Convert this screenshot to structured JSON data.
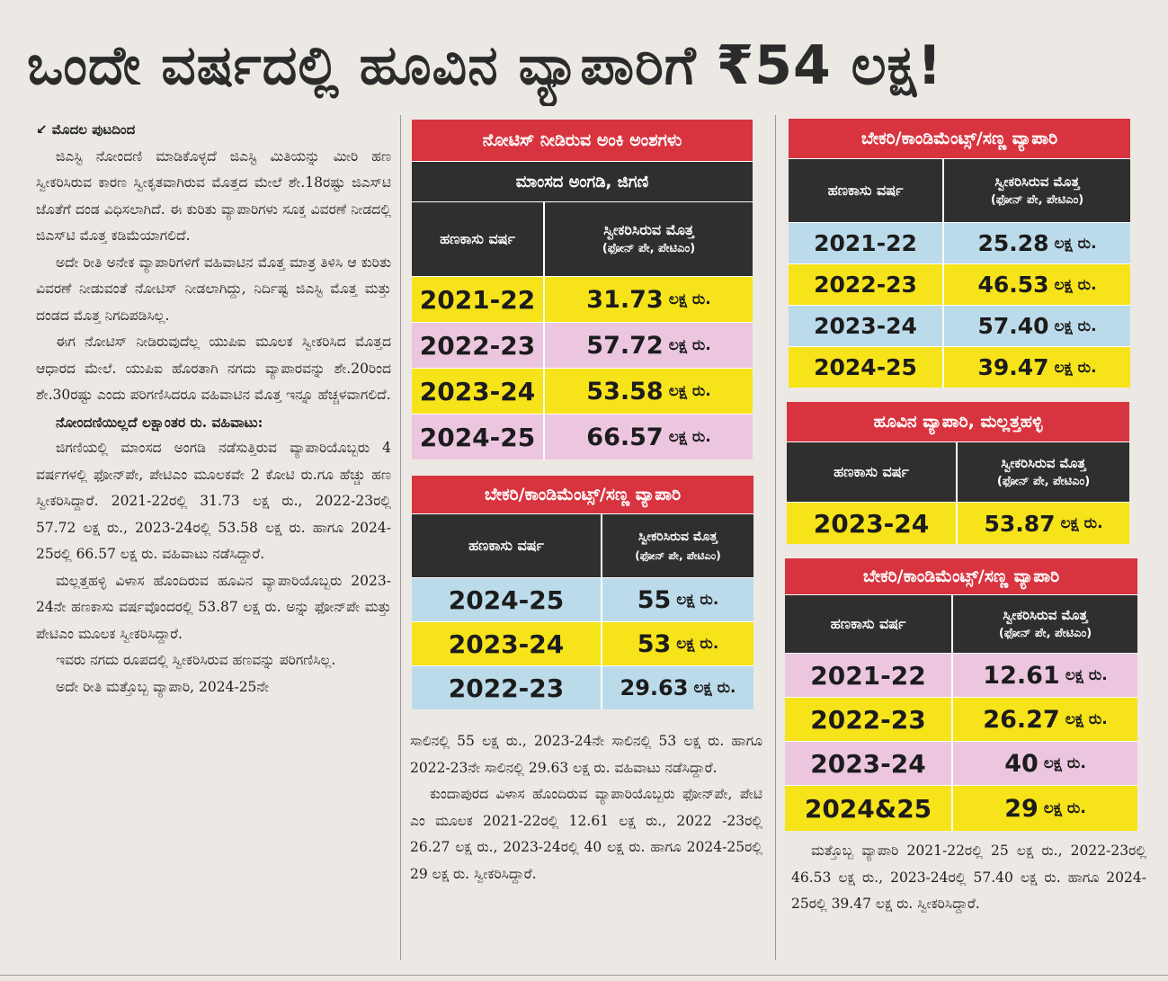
{
  "headline": "ಒಂದೇ ವರ್ಷದಲ್ಲಿ ಹೂವಿನ ವ್ಯಾಪಾರಿಗೆ ₹54 ಲಕ್ಷ!",
  "left_column": {
    "continued": "ಮೊದಲ ಪುಟದಿಂದ",
    "p1": "ಜಿಎಸ್ಟಿ ನೋಂದಣಿ ಮಾಡಿಕೊಳ್ಳದೆ ಜಿಎಸ್ಟಿ ಮಿತಿಯನ್ನು ಮೀರಿ ಹಣ ಸ್ವೀಕರಿಸಿರುವ ಕಾರಣ ಸ್ವೀಕೃತವಾಗಿರುವ ಮೊತ್ತದ ಮೇಲೆ ಶೇ.18ರಷ್ಟು ಜಿಎಸ್‌ಟಿ ಜೊತೆಗೆ ದಂಡ ವಿಧಿಸಲಾಗಿದೆ. ಈ ಕುರಿತು ವ್ಯಾಪಾರಿಗಳು ಸೂಕ್ತ ವಿವರಣೆ ನೀಡದಲ್ಲಿ ಜಿಎಸ್‌ಟಿ ಮೊತ್ತ ಕಡಿಮೆಯಾಗಲಿದೆ.",
    "p2": "ಅದೇ ರೀತಿ ಅನೇಕ ವ್ಯಾಪಾರಿಗಳಿಗೆ ವಹಿವಾಟಿನ ಮೊತ್ತ ಮಾತ್ರ ತಿಳಿಸಿ ಆ ಕುರಿತು ವಿವರಣೆ ನೀಡುವಂತೆ ನೋಟಿಸ್ ನೀಡಲಾಗಿದ್ದು, ನಿರ್ದಿಷ್ಟ ಜಿಎಸ್ಟಿ ಮೊತ್ತ ಮತ್ತು ದಂಡದ ಮೊತ್ತ ನಿಗದಿಪಡಿಸಿಲ್ಲ.",
    "p3": "ಈಗ ನೋಟಿಸ್ ನೀಡಿರುವುದೆಲ್ಲ ಯುಪಿಐ ಮೂಲಕ ಸ್ವೀಕರಿಸಿದ ಮೊತ್ತದ ಆಧಾರದ ಮೇಲೆ. ಯುಪಿಐ ಹೊರತಾಗಿ ನಗದು ವ್ಯಾಪಾರವನ್ನು ಶೇ.20ರಿಂದ ಶೇ.30ರಷ್ಟು ಎಂದು ಪರಿಗಣಿಸಿದರೂ ವಹಿವಾಟಿನ ಮೊತ್ತ ಇನ್ನೂ ಹೆಚ್ಚಳವಾಗಲಿದೆ.",
    "p4_heading": "ನೋಂದಣಿಯಿಲ್ಲದೆ ಲಕ್ಷಾಂತರ ರು. ವಹಿವಾಟು:",
    "p4": "ಜಿಗಣಿಯಲ್ಲಿ ಮಾಂಸದ ಅಂಗಡಿ ನಡೆಸುತ್ತಿರುವ ವ್ಯಾಪಾರಿಯೊಬ್ಬರು 4 ವರ್ಷಗಳಲ್ಲಿ ಫೋನ್‌ಪೇ, ಪೇಟಿಎಂ ಮೂಲಕವೇ 2 ಕೋಟಿ ರು.ಗೂ ಹೆಚ್ಚು ಹಣ ಸ್ವೀಕರಿಸಿದ್ದಾರೆ. 2021-22ರಲ್ಲಿ 31.73 ಲಕ್ಷ ರು., 2022-23ರಲ್ಲಿ 57.72 ಲಕ್ಷ ರು., 2023-24ರಲ್ಲಿ 53.58 ಲಕ್ಷ ರು. ಹಾಗೂ 2024-25ರಲ್ಲಿ 66.57 ಲಕ್ಷ ರು. ವಹಿವಾಟು ನಡೆಸಿದ್ದಾರೆ.",
    "p5": "ಮಲ್ಲತ್ತಹಳ್ಳಿ ವಿಳಾಸ ಹೊಂದಿರುವ ಹೂವಿನ ವ್ಯಾಪಾರಿಯೊಬ್ಬರು 2023-24ನೇ ಹಣಕಾಸು ವರ್ಷವೊಂದರಲ್ಲಿ 53.87 ಲಕ್ಷ ರು. ಅನ್ನು ಫೋನ್‌ಪೇ ಮತ್ತು ಪೇಟಿಎಂ ಮೂಲಕ ಸ್ವೀಕರಿಸಿದ್ದಾರೆ.",
    "p6": "ಇವರು ನಗದು ರೂಪದಲ್ಲಿ ಸ್ವೀಕರಿಸಿರುವ ಹಣವನ್ನು ಪರಿಗಣಿಸಿಲ್ಲ.",
    "p7": "ಅದೇ ರೀತಿ ಮತ್ತೊಬ್ಬ ವ್ಯಾಪಾರಿ, 2024-25ನೇ"
  },
  "table_meat": {
    "title": "ನೋಟಿಸ್ ನೀಡಿರುವ ಅಂಕಿ ಅಂಶಗಳು",
    "subtitle": "ಮಾಂಸದ ಅಂಗಡಿ, ಜಿಗಣಿ",
    "col_year": "ಹಣಕಾಸು ವರ್ಷ",
    "col_amount": "ಸ್ವೀಕರಿಸಿರುವ ಮೊತ್ತ",
    "col_amount_sub": "(ಫೋನ್ ಪೇ, ಪೇಟಿಎಂ)",
    "unit": "ಲಕ್ಷ ರು.",
    "rows": [
      {
        "year": "2021-22",
        "amount": "31.73"
      },
      {
        "year": "2022-23",
        "amount": "57.72"
      },
      {
        "year": "2023-24",
        "amount": "53.58"
      },
      {
        "year": "2024-25",
        "amount": "66.57"
      }
    ]
  },
  "table_bakery_mid": {
    "title": "ಬೇಕರಿ/ಕಾಂಡಿಮೆಂಟ್ಸ್/ಸಣ್ಣ ವ್ಯಾಪಾರಿ",
    "col_year": "ಹಣಕಾಸು ವರ್ಷ",
    "col_amount": "ಸ್ವೀಕರಿಸಿರುವ ಮೊತ್ತ",
    "col_amount_sub": "(ಫೋನ್ ಪೇ, ಪೇಟಿಎಂ)",
    "unit": "ಲಕ್ಷ ರು.",
    "rows": [
      {
        "year": "2024-25",
        "amount": "55"
      },
      {
        "year": "2023-24",
        "amount": "53"
      },
      {
        "year": "2022-23",
        "amount": "29.63"
      }
    ]
  },
  "middle_text": {
    "p1": "ಸಾಲಿನಲ್ಲಿ 55 ಲಕ್ಷ ರು., 2023-24ನೇ ಸಾಲಿನಲ್ಲಿ 53 ಲಕ್ಷ ರು. ಹಾಗೂ 2022-23ನೇ ಸಾಲಿನಲ್ಲಿ 29.63 ಲಕ್ಷ ರು. ವಹಿವಾಟು ನಡೆಸಿದ್ದಾರೆ.",
    "p2": "ಕುಂದಾಪುರದ ವಿಳಾಸ ಹೊಂದಿರುವ ವ್ಯಾಪಾರಿಯೊಬ್ಬರು ಫೋನ್‌ಪೇ, ಪೇಟಿ ಎಂ ಮೂಲಕ 2021-22ರಲ್ಲಿ 12.61 ಲಕ್ಷ ರು., 2022 -23ರಲ್ಲಿ 26.27 ಲಕ್ಷ ರು., 2023-24ರಲ್ಲಿ 40 ಲಕ್ಷ ರು. ಹಾಗೂ 2024-25ರಲ್ಲಿ 29 ಲಕ್ಷ ರು. ಸ್ವೀಕರಿಸಿದ್ದಾರೆ."
  },
  "table_bakery_right1": {
    "title": "ಬೇಕರಿ/ಕಾಂಡಿಮೆಂಟ್ಸ್/ಸಣ್ಣ ವ್ಯಾಪಾರಿ",
    "col_year": "ಹಣಕಾಸು ವರ್ಷ",
    "col_amount": "ಸ್ವೀಕರಿಸಿರುವ ಮೊತ್ತ",
    "col_amount_sub": "(ಫೋನ್ ಪೇ, ಪೇಟಿಎಂ)",
    "unit": "ಲಕ್ಷ ರು.",
    "rows": [
      {
        "year": "2021-22",
        "amount": "25.28"
      },
      {
        "year": "2022-23",
        "amount": "46.53"
      },
      {
        "year": "2023-24",
        "amount": "57.40"
      },
      {
        "year": "2024-25",
        "amount": "39.47"
      }
    ]
  },
  "table_flower": {
    "title": "ಹೂವಿನ ವ್ಯಾಪಾರಿ, ಮಲ್ಲತ್ತಹಳ್ಳಿ",
    "col_year": "ಹಣಕಾಸು ವರ್ಷ",
    "col_amount": "ಸ್ವೀಕರಿಸಿರುವ ಮೊತ್ತ",
    "col_amount_sub": "(ಫೋನ್ ಪೇ, ಪೇಟಿಎಂ)",
    "unit": "ಲಕ್ಷ ರು.",
    "rows": [
      {
        "year": "2023-24",
        "amount": "53.87"
      }
    ]
  },
  "table_bakery_right2": {
    "title": "ಬೇಕರಿ/ಕಾಂಡಿಮೆಂಟ್ಸ್/ಸಣ್ಣ ವ್ಯಾಪಾರಿ",
    "col_year": "ಹಣಕಾಸು ವರ್ಷ",
    "col_amount": "ಸ್ವೀಕರಿಸಿರುವ ಮೊತ್ತ",
    "col_amount_sub": "(ಫೋನ್ ಪೇ, ಪೇಟಿಎಂ)",
    "unit": "ಲಕ್ಷ ರು.",
    "rows": [
      {
        "year": "2021-22",
        "amount": "12.61"
      },
      {
        "year": "2022-23",
        "amount": "26.27"
      },
      {
        "year": "2023-24",
        "amount": "40"
      },
      {
        "year": "2024&25",
        "amount": "29"
      }
    ]
  },
  "right_text": {
    "p1": "ಮತ್ತೊಬ್ಬ ವ್ಯಾಪಾರಿ 2021-22ರಲ್ಲಿ 25 ಲಕ್ಷ ರು., 2022-23ರಲ್ಲಿ 46.53 ಲಕ್ಷ ರು., 2023-24ರಲ್ಲಿ 57.40 ಲಕ್ಷ ರು. ಹಾಗೂ 2024-25ರಲ್ಲಿ 39.47 ಲಕ್ಷ ರು. ಸ್ವೀಕರಿಸಿದ್ದಾರೆ."
  }
}
